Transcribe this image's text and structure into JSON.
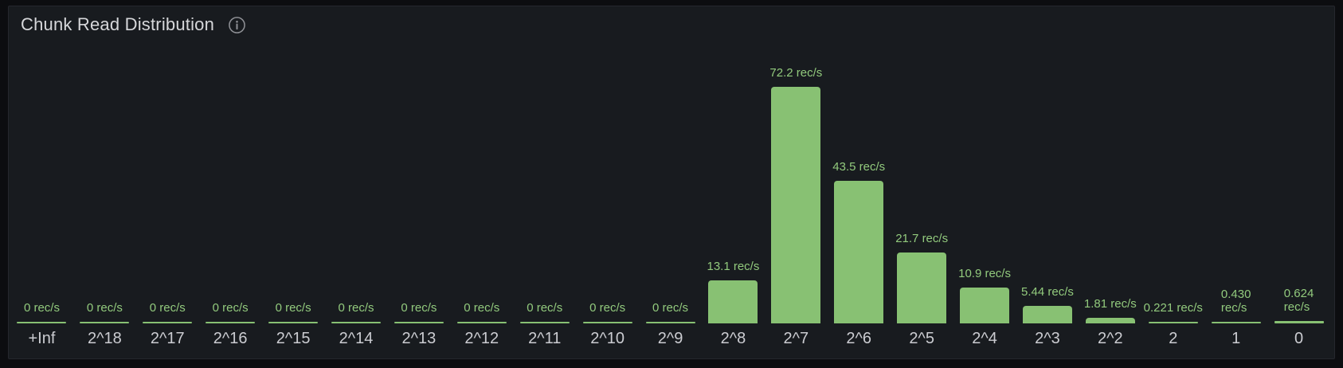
{
  "panel": {
    "title": "Chunk Read Distribution"
  },
  "colors": {
    "page_background": "#0c0d10",
    "panel_background": "#181b1f",
    "panel_border": "#25272d",
    "title_text": "#d6d7da",
    "bar_fill": "#88c173",
    "value_label_text": "#92ca7d",
    "axis_label_text": "#cbccd1",
    "info_icon": "#8f9196"
  },
  "chart_data": {
    "type": "bar",
    "title": "Chunk Read Distribution",
    "unit": "rec/s",
    "orientation": "vertical",
    "grid": false,
    "legend": false,
    "ylim": [
      0,
      80
    ],
    "categories": [
      "+Inf",
      "2^18",
      "2^17",
      "2^16",
      "2^15",
      "2^14",
      "2^13",
      "2^12",
      "2^11",
      "2^10",
      "2^9",
      "2^8",
      "2^7",
      "2^6",
      "2^5",
      "2^4",
      "2^3",
      "2^2",
      "2",
      "1",
      "0"
    ],
    "values": [
      0,
      0,
      0,
      0,
      0,
      0,
      0,
      0,
      0,
      0,
      0,
      13.1,
      72.2,
      43.5,
      21.7,
      10.9,
      5.44,
      1.81,
      0.221,
      0.43,
      0.624
    ],
    "value_labels": [
      "0 rec/s",
      "0 rec/s",
      "0 rec/s",
      "0 rec/s",
      "0 rec/s",
      "0 rec/s",
      "0 rec/s",
      "0 rec/s",
      "0 rec/s",
      "0 rec/s",
      "0 rec/s",
      "13.1 rec/s",
      "72.2 rec/s",
      "43.5 rec/s",
      "21.7 rec/s",
      "10.9 rec/s",
      "5.44 rec/s",
      "1.81 rec/s",
      "0.221 rec/s",
      "0.430\nrec/s",
      "0.624\nrec/s"
    ]
  }
}
